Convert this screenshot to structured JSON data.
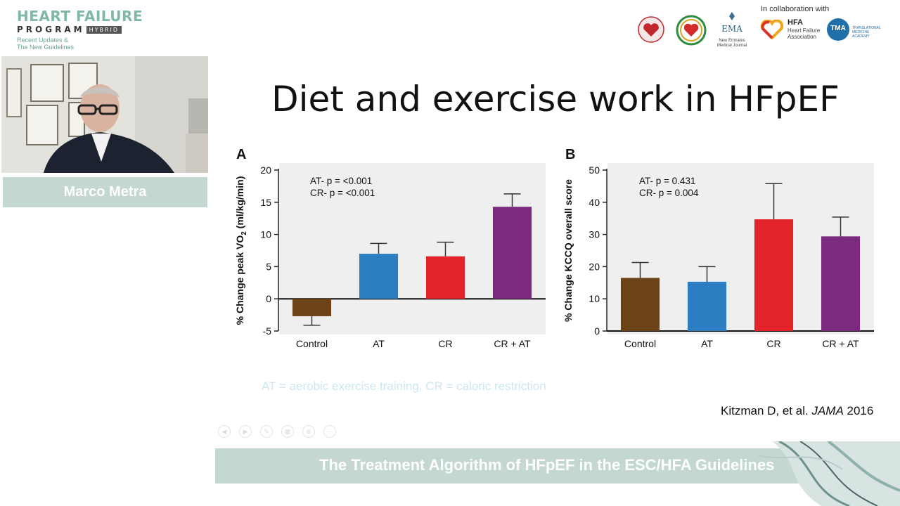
{
  "brand": {
    "line1": "HEART FAILURE",
    "line2": "PROGRAM",
    "hybrid": "HYBRID",
    "line3a": "Recent Updates &",
    "line3b": "The New Guidelines"
  },
  "sponsors": {
    "collab_label": "In collaboration with",
    "ema_name": "EMA",
    "ema_caption_1": "New Emirates",
    "ema_caption_2": "Medical Journal",
    "hfa_name": "HFA",
    "hfa_caption_1": "Heart Failure",
    "hfa_caption_2": "Association",
    "tma_name": "TMA",
    "tma_caption": "TRANSLATIONAL MEDICINE ACADEMY"
  },
  "speaker": {
    "name": "Marco Metra"
  },
  "slide": {
    "title": "Diet and exercise work in HFpEF",
    "abbrev": "AT = aerobic exercise training, CR = caloric restriction",
    "citation_author": "Kitzman D, et al. ",
    "citation_journal": "JAMA",
    "citation_year": " 2016"
  },
  "banner": {
    "text": "The Treatment Algorithm of HFpEF in the ESC/HFA Guidelines"
  },
  "chart_data": [
    {
      "type": "bar",
      "panel_label": "A",
      "categories": [
        "Control",
        "AT",
        "CR",
        "CR + AT"
      ],
      "values": [
        -2.7,
        7.0,
        6.6,
        14.3
      ],
      "error_upper": [
        -4.1,
        8.6,
        8.8,
        16.3
      ],
      "colors": [
        "#6b4316",
        "#2b7ec1",
        "#e2232a",
        "#7b2a7f"
      ],
      "ylabel_prefix": "% Change peak VO",
      "ylabel_sub": "2",
      "ylabel_suffix": " (ml/kg/min)",
      "ylim": [
        -5,
        20
      ],
      "yticks": [
        -5,
        0,
        5,
        10,
        15,
        20
      ],
      "annotations": [
        "AT- p = <0.001",
        "CR- p = <0.001"
      ]
    },
    {
      "type": "bar",
      "panel_label": "B",
      "categories": [
        "Control",
        "AT",
        "CR",
        "CR + AT"
      ],
      "values": [
        16.5,
        15.3,
        34.7,
        29.4
      ],
      "error_upper": [
        21.3,
        20.0,
        45.8,
        35.4
      ],
      "colors": [
        "#6b4316",
        "#2b7ec1",
        "#e2232a",
        "#7b2a7f"
      ],
      "ylabel": "% Change KCCQ overall score",
      "ylim": [
        0,
        50
      ],
      "yticks": [
        0,
        10,
        20,
        30,
        40,
        50
      ],
      "annotations": [
        "AT- p = 0.431",
        "CR- p = 0.004"
      ]
    }
  ]
}
